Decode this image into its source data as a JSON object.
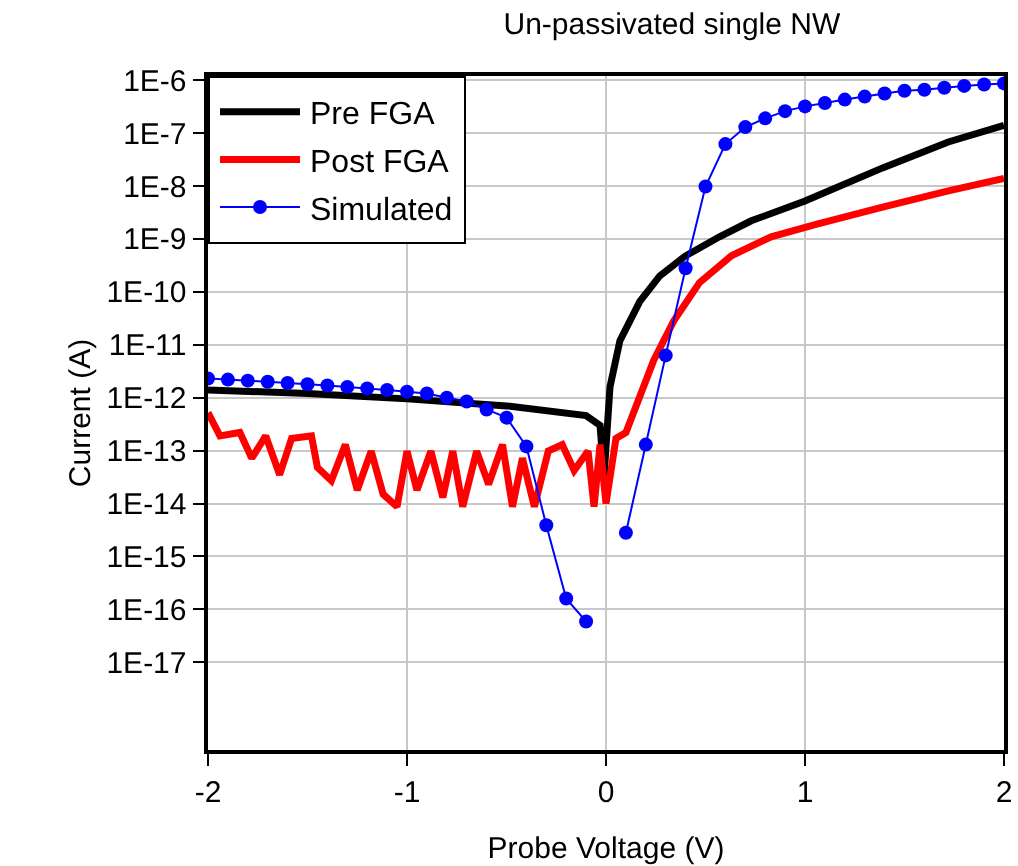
{
  "chart_data": {
    "type": "line",
    "title": "Un-passivated single NW",
    "xlabel": "Probe Voltage (V)",
    "ylabel": "Current (A)",
    "log": "y",
    "grid": true,
    "legend": "top left",
    "xlim": [
      -2,
      2
    ],
    "xticks": [
      -2,
      -1,
      0,
      1,
      2
    ],
    "ylim": [
      2.2e-19,
      1.2e-06
    ],
    "yticks": [
      {
        "value": 1e-17,
        "label": "1E-17"
      },
      {
        "value": 1e-16,
        "label": "1E-16"
      },
      {
        "value": 1e-15,
        "label": "1E-15"
      },
      {
        "value": 1e-14,
        "label": "1E-14"
      },
      {
        "value": 1e-13,
        "label": "1E-13"
      },
      {
        "value": 1e-12,
        "label": "1E-12"
      },
      {
        "value": 1e-11,
        "label": "1E-11"
      },
      {
        "value": 1e-10,
        "label": "1E-10"
      },
      {
        "value": 1e-09,
        "label": "1E-9"
      },
      {
        "value": 1e-08,
        "label": "1E-8"
      },
      {
        "value": 1e-07,
        "label": "1E-7"
      },
      {
        "value": 1e-06,
        "label": "1E-6"
      }
    ],
    "series": [
      {
        "name": "Pre FGA",
        "color": "#000000",
        "marker": "none",
        "x": [
          -2,
          -1.5,
          -1,
          -0.5,
          -0.1,
          -0.03,
          -0.01,
          0.02,
          0.07,
          0.17,
          0.27,
          0.4,
          0.57,
          0.73,
          1.0,
          1.39,
          1.72,
          2.0
        ],
        "values": [
          1.4e-12,
          1.2e-12,
          9.5e-13,
          7e-13,
          4.6e-13,
          3e-13,
          3.2e-14,
          1.6e-12,
          1.2e-11,
          6.6e-11,
          2e-10,
          4.8e-10,
          1.1e-09,
          2.2e-09,
          5.2e-09,
          2.2e-08,
          6.8e-08,
          1.4e-07
        ]
      },
      {
        "name": "Post FGA",
        "color": "#ff0000",
        "marker": "none",
        "x": [
          -2.0,
          -1.94,
          -1.84,
          -1.78,
          -1.71,
          -1.64,
          -1.58,
          -1.48,
          -1.45,
          -1.38,
          -1.31,
          -1.25,
          -1.18,
          -1.12,
          -1.05,
          -1.0,
          -0.95,
          -0.88,
          -0.82,
          -0.77,
          -0.72,
          -0.65,
          -0.59,
          -0.52,
          -0.47,
          -0.42,
          -0.36,
          -0.29,
          -0.22,
          -0.16,
          -0.09,
          -0.06,
          -0.03,
          0.0,
          0.05,
          0.1,
          0.24,
          0.34,
          0.47,
          0.63,
          0.83,
          1.06,
          1.39,
          1.72,
          2.0
        ],
        "values": [
          5.2e-13,
          1.9e-13,
          2.2e-13,
          7.2e-14,
          1.9e-13,
          3.5e-14,
          1.7e-13,
          1.9e-13,
          4.8e-14,
          2.7e-14,
          1.3e-13,
          1.8e-14,
          9.8e-14,
          1.5e-14,
          8.7e-15,
          9.8e-14,
          1.8e-14,
          9.8e-14,
          1.3e-14,
          9.8e-14,
          8.7e-15,
          9.8e-14,
          2.3e-14,
          1.3e-13,
          8.7e-15,
          7.2e-14,
          8.7e-15,
          9.8e-14,
          1.3e-13,
          4.2e-14,
          9.8e-14,
          8.7e-15,
          1.3e-13,
          1e-14,
          1.7e-13,
          2.2e-13,
          5.1e-12,
          2.8e-11,
          1.5e-10,
          4.8e-10,
          1.1e-09,
          1.9e-09,
          4e-09,
          8.1e-09,
          1.4e-08
        ]
      },
      {
        "name": "Simulated",
        "color": "#0000ff",
        "marker": "circle",
        "x": [
          -2,
          -1.9,
          -1.8,
          -1.7,
          -1.6,
          -1.5,
          -1.4,
          -1.3,
          -1.2,
          -1.1,
          -1.0,
          -0.9,
          -0.8,
          -0.7,
          -0.6,
          -0.5,
          -0.4,
          -0.3,
          -0.2,
          -0.1,
          0,
          0.1,
          0.2,
          0.3,
          0.4,
          0.5,
          0.6,
          0.7,
          0.8,
          0.9,
          1.0,
          1.1,
          1.2,
          1.3,
          1.4,
          1.5,
          1.6,
          1.7,
          1.8,
          1.9,
          2.0
        ],
        "values": [
          2.3e-12,
          2.2e-12,
          2.1e-12,
          2e-12,
          1.9e-12,
          1.8e-12,
          1.7e-12,
          1.6e-12,
          1.5e-12,
          1.4e-12,
          1.3e-12,
          1.2e-12,
          1e-12,
          8.5e-13,
          6e-13,
          4.2e-13,
          1.2e-13,
          3.9e-15,
          1.6e-16,
          5.9e-17,
          null,
          2.8e-15,
          1.3e-13,
          6.3e-12,
          2.8e-10,
          9.8e-09,
          6.2e-08,
          1.3e-07,
          1.9e-07,
          2.6e-07,
          3.2e-07,
          3.7e-07,
          4.3e-07,
          4.9e-07,
          5.6e-07,
          6.3e-07,
          6.6e-07,
          7.2e-07,
          7.8e-07,
          8.3e-07,
          8.7e-07
        ]
      }
    ]
  }
}
